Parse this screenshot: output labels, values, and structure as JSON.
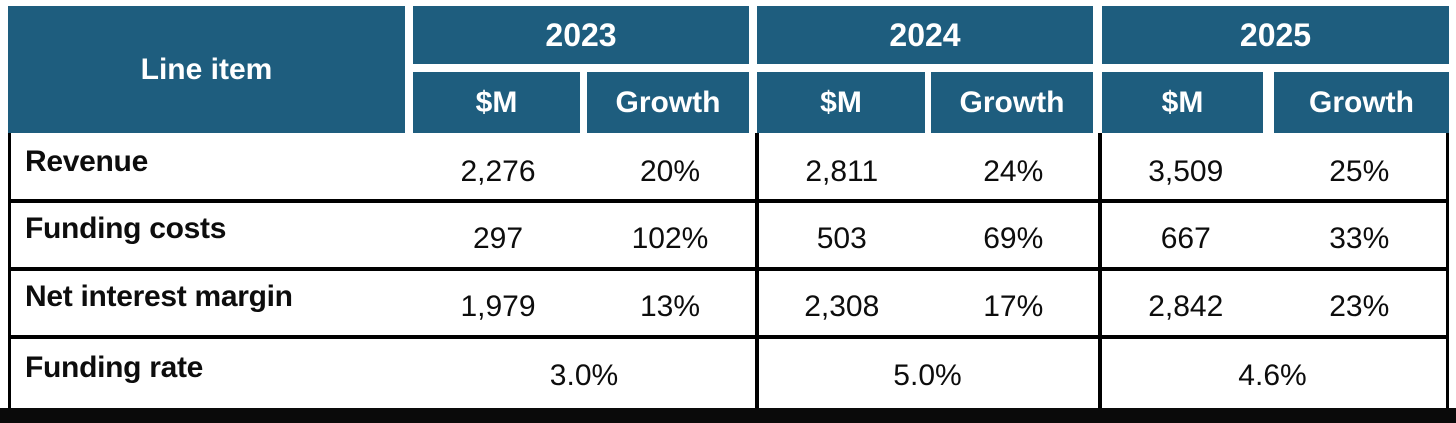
{
  "table": {
    "header": {
      "line_item": "Line item",
      "groups": [
        {
          "year": "2023",
          "m": "$M",
          "growth": "Growth"
        },
        {
          "year": "2024",
          "m": "$M",
          "growth": "Growth"
        },
        {
          "year": "2025",
          "m": "$M",
          "growth": "Growth"
        }
      ]
    },
    "rows": [
      {
        "label": "Revenue",
        "y2023": {
          "m": "2,276",
          "growth": "20%"
        },
        "y2024": {
          "m": "2,811",
          "growth": "24%"
        },
        "y2025": {
          "m": "3,509",
          "growth": "25%"
        }
      },
      {
        "label": "Funding costs",
        "y2023": {
          "m": "297",
          "growth": "102%"
        },
        "y2024": {
          "m": "503",
          "growth": "69%"
        },
        "y2025": {
          "m": "667",
          "growth": "33%"
        }
      },
      {
        "label": "Net interest margin",
        "y2023": {
          "m": "1,979",
          "growth": "13%"
        },
        "y2024": {
          "m": "2,308",
          "growth": "17%"
        },
        "y2025": {
          "m": "2,842",
          "growth": "23%"
        }
      },
      {
        "label": "Funding rate",
        "y2023": {
          "span": "3.0%"
        },
        "y2024": {
          "span": "5.0%"
        },
        "y2025": {
          "span": "4.6%"
        }
      }
    ],
    "colors": {
      "header_bg": "#1e5d7e",
      "header_text": "#ffffff",
      "body_text": "#0d0d0d",
      "grid_line": "#000000",
      "bottom_bar": "#0a0a0a"
    }
  },
  "chart_data": {
    "type": "table",
    "title": "",
    "columns": [
      "Line item",
      "2023 $M",
      "2023 Growth",
      "2024 $M",
      "2024 Growth",
      "2025 $M",
      "2025 Growth"
    ],
    "rows": [
      [
        "Revenue",
        "2,276",
        "20%",
        "2,811",
        "24%",
        "3,509",
        "25%"
      ],
      [
        "Funding costs",
        "297",
        "102%",
        "503",
        "69%",
        "667",
        "33%"
      ],
      [
        "Net interest margin",
        "1,979",
        "13%",
        "2,308",
        "17%",
        "2,842",
        "23%"
      ],
      [
        "Funding rate",
        "3.0%",
        "3.0%",
        "5.0%",
        "5.0%",
        "4.6%",
        "4.6%"
      ]
    ],
    "notes": "Funding rate values span both sub-columns of each year group"
  }
}
